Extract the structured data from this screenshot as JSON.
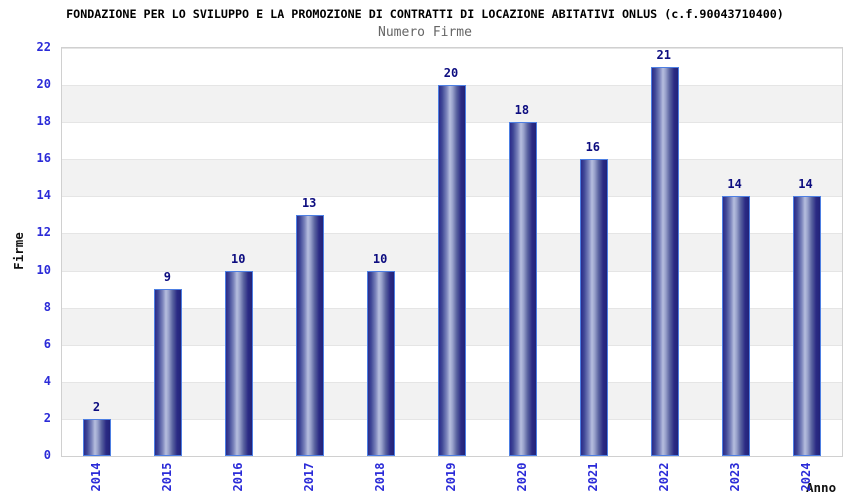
{
  "header": {
    "title": "FONDAZIONE PER LO SVILUPPO E LA PROMOZIONE DI CONTRATTI DI LOCAZIONE ABITATIVI ONLUS (c.f.90043710400)",
    "subtitle": "Numero Firme"
  },
  "chart_data": {
    "type": "bar",
    "title": "Numero Firme",
    "categories": [
      "2014",
      "2015",
      "2016",
      "2017",
      "2018",
      "2019",
      "2020",
      "2021",
      "2022",
      "2023",
      "2024"
    ],
    "values": [
      2,
      9,
      10,
      13,
      10,
      20,
      18,
      16,
      21,
      14,
      14
    ],
    "xlabel": "Anno",
    "ylabel": "Firme",
    "ylim": [
      0,
      22
    ],
    "ytick_step": 2,
    "grid": "alternating horizontal bands, white and light gray",
    "legend": "none",
    "bar_value_labels_shown": true,
    "x_tick_rotation_degrees": -90
  },
  "colors": {
    "tick_label_blue": "#2b2bd8",
    "value_label_navy": "#0d0d80",
    "bar_border_blue": "#4d7fe3",
    "bar_gradient_dark": "#23237d",
    "bar_gradient_light": "#b6bede",
    "band_gray": "#f2f2f2",
    "plot_border_gray": "#d0d0d0",
    "title_color": "#000000",
    "subtitle_color": "#666666"
  }
}
